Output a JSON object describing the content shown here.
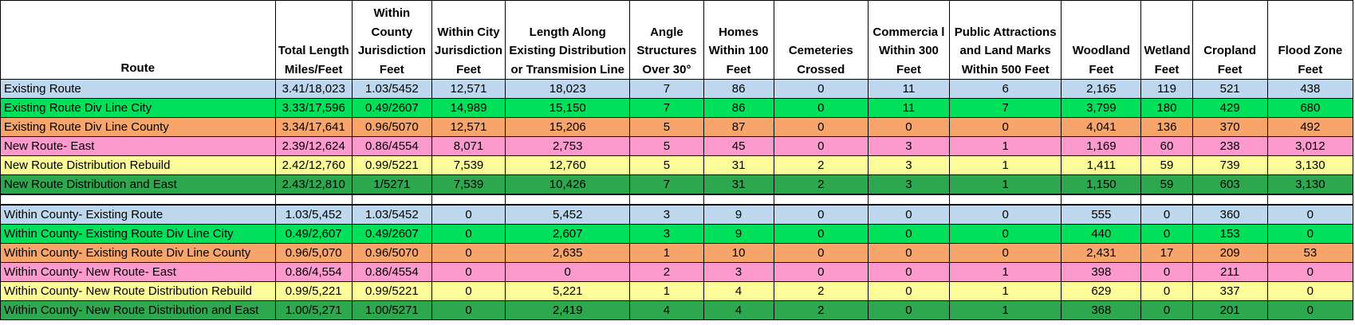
{
  "headers": [
    "Route",
    "Total Length Miles/Feet",
    "Within County Jurisdiction Feet",
    "Within City Jurisdiction Feet",
    "Length Along Existing Distribution or Transmision Line",
    "Angle Structures Over 30°",
    "Homes Within 100 Feet",
    "Cemeteries Crossed",
    "Commercia l Within 300 Feet",
    "Public Attractions and Land Marks Within 500 Feet",
    "Woodland Feet",
    "Wetland Feet",
    "Cropland Feet",
    "Flood Zone Feet"
  ],
  "colors": {
    "blue": "#bdd7ee",
    "light_green": "#00e05a",
    "orange": "#f7a56a",
    "pink": "#fc9ace",
    "yellow": "#fdfc98",
    "dark_green": "#2ea84f"
  },
  "rows": [
    [
      "Existing Route",
      "3.41/18,023",
      "1.03/5452",
      "12,571",
      "18,023",
      "7",
      "86",
      "0",
      "11",
      "6",
      "2,165",
      "119",
      "521",
      "438"
    ],
    [
      "Existing Route Div Line City",
      "3.33/17,596",
      "0.49/2607",
      "14,989",
      "15,150",
      "7",
      "86",
      "0",
      "11",
      "7",
      "3,799",
      "180",
      "429",
      "680"
    ],
    [
      "Existing Route Div Line County",
      "3.34/17,641",
      "0.96/5070",
      "12,571",
      "15,206",
      "5",
      "87",
      "0",
      "0",
      "0",
      "4,041",
      "136",
      "370",
      "492"
    ],
    [
      "New Route- East",
      "2.39/12,624",
      "0.86/4554",
      "8,071",
      "2,753",
      "5",
      "45",
      "0",
      "3",
      "1",
      "1,169",
      "60",
      "238",
      "3,012"
    ],
    [
      "New Route Distribution Rebuild",
      "2.42/12,760",
      "0.99/5221",
      "7,539",
      "12,760",
      "5",
      "31",
      "2",
      "3",
      "1",
      "1,411",
      "59",
      "739",
      "3,130"
    ],
    [
      "New Route Distribution and East",
      "2.43/12,810",
      "1/5271",
      "7,539",
      "10,426",
      "7",
      "31",
      "2",
      "3",
      "1",
      "1,150",
      "59",
      "603",
      "3,130"
    ],
    [
      "Within County- Existing Route",
      "1.03/5,452",
      "1.03/5452",
      "0",
      "5,452",
      "3",
      "9",
      "0",
      "0",
      "0",
      "555",
      "0",
      "360",
      "0"
    ],
    [
      "Within County- Existing Route Div Line City",
      "0.49/2,607",
      "0.49/2607",
      "0",
      "2,607",
      "3",
      "9",
      "0",
      "0",
      "0",
      "440",
      "0",
      "153",
      "0"
    ],
    [
      "Within County- Existing Route Div Line County",
      "0.96/5,070",
      "0.96/5070",
      "0",
      "2,635",
      "1",
      "10",
      "0",
      "0",
      "0",
      "2,431",
      "17",
      "209",
      "53"
    ],
    [
      "Within County- New Route- East",
      "0.86/4,554",
      "0.86/4554",
      "0",
      "0",
      "2",
      "3",
      "0",
      "0",
      "1",
      "398",
      "0",
      "211",
      "0"
    ],
    [
      "Within County- New Route Distribution Rebuild",
      "0.99/5,221",
      "0.99/5221",
      "0",
      "5,221",
      "1",
      "4",
      "2",
      "0",
      "1",
      "629",
      "0",
      "337",
      "0"
    ],
    [
      "Within County- New Route Distribution and East",
      "1.00/5,271",
      "1.00/5271",
      "0",
      "2,419",
      "4",
      "4",
      "2",
      "0",
      "1",
      "368",
      "0",
      "201",
      "0"
    ]
  ]
}
